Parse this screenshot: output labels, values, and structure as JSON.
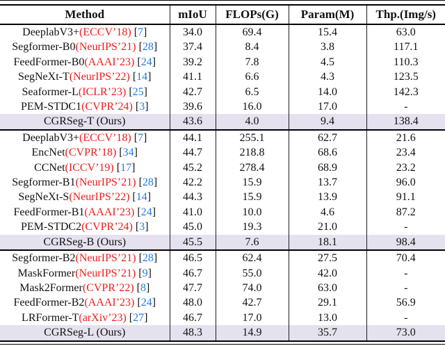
{
  "colors": {
    "venue_red": "#ee1c1c",
    "cite_blue": "#2779e0",
    "highlight_row_bg": "#e5e1ee",
    "rule_black": "#000000"
  },
  "table": {
    "columns": [
      "Method",
      "mIoU",
      "FLOPs(G)",
      "Param(M)",
      "Thp.(Img/s)"
    ],
    "column_keys": [
      "miou",
      "flops",
      "param",
      "thp"
    ],
    "groups": [
      {
        "rows": [
          {
            "name": "DeeplabV3+",
            "venue": "(ECCV’18)",
            "cite": "7",
            "values": [
              "34.0",
              "69.4",
              "15.4",
              "63.0"
            ],
            "highlight": false
          },
          {
            "name": "Segformer-B0",
            "venue": "(NeurIPS’21)",
            "cite": "28",
            "values": [
              "37.4",
              "8.4",
              "3.8",
              "117.1"
            ],
            "highlight": false
          },
          {
            "name": "FeedFormer-B0",
            "venue": "(AAAI’23)",
            "cite": "24",
            "values": [
              "39.2",
              "7.8",
              "4.5",
              "110.3"
            ],
            "highlight": false
          },
          {
            "name": "SegNeXt-T",
            "venue": "(NeurIPS’22)",
            "cite": "14",
            "values": [
              "41.1",
              "6.6",
              "4.3",
              "123.5"
            ],
            "highlight": false
          },
          {
            "name": "Seaformer-L",
            "venue": "(ICLR’23)",
            "cite": "25",
            "values": [
              "42.7",
              "6.5",
              "14.0",
              "142.3"
            ],
            "highlight": false
          },
          {
            "name": "PEM-STDC1",
            "venue": "(CVPR’24)",
            "cite": "3",
            "values": [
              "39.6",
              "16.0",
              "17.0",
              "-"
            ],
            "highlight": false
          },
          {
            "name": "CGRSeg-T (Ours)",
            "venue": null,
            "cite": null,
            "values": [
              "43.6",
              "4.0",
              "9.4",
              "138.4"
            ],
            "highlight": true
          }
        ]
      },
      {
        "rows": [
          {
            "name": "DeeplabV3+",
            "venue": "(ECCV’18)",
            "cite": "7",
            "values": [
              "44.1",
              "255.1",
              "62.7",
              "21.6"
            ],
            "highlight": false
          },
          {
            "name": "EncNet",
            "venue": "(CVPR’18)",
            "cite": "34",
            "values": [
              "44.7",
              "218.8",
              "68.6",
              "23.4"
            ],
            "highlight": false
          },
          {
            "name": "CCNet",
            "venue": "(ICCV’19)",
            "cite": "17",
            "values": [
              "45.2",
              "278.4",
              "68.9",
              "23.2"
            ],
            "highlight": false
          },
          {
            "name": "Segformer-B1",
            "venue": "(NeurIPS’21)",
            "cite": "28",
            "values": [
              "42.2",
              "15.9",
              "13.7",
              "96.0"
            ],
            "highlight": false
          },
          {
            "name": "SegNeXt-S",
            "venue": "(NeurIPS’22)",
            "cite": "14",
            "values": [
              "44.3",
              "15.9",
              "13.9",
              "91.1"
            ],
            "highlight": false
          },
          {
            "name": "FeedFormer-B1",
            "venue": "(AAAI’23)",
            "cite": "24",
            "values": [
              "41.0",
              "10.0",
              "4.6",
              "87.2"
            ],
            "highlight": false
          },
          {
            "name": "PEM-STDC2",
            "venue": "(CVPR’24)",
            "cite": "3",
            "values": [
              "45.0",
              "19.3",
              "21.0",
              "-"
            ],
            "highlight": false
          },
          {
            "name": "CGRSeg-B (Ours)",
            "venue": null,
            "cite": null,
            "values": [
              "45.5",
              "7.6",
              "18.1",
              "98.4"
            ],
            "highlight": true
          }
        ]
      },
      {
        "rows": [
          {
            "name": "Segformer-B2",
            "venue": "(NeurIPS’21)",
            "cite": "28",
            "values": [
              "46.5",
              "62.4",
              "27.5",
              "70.4"
            ],
            "highlight": false
          },
          {
            "name": "MaskFormer",
            "venue": "(NeurIPS’21)",
            "cite": "9",
            "values": [
              "46.7",
              "55.0",
              "42.0",
              "-"
            ],
            "highlight": false
          },
          {
            "name": "Mask2Former",
            "venue": "(CVPR’22)",
            "cite": "8",
            "values": [
              "47.7",
              "74.0",
              "63.0",
              "-"
            ],
            "highlight": false
          },
          {
            "name": "FeedFormer-B2",
            "venue": "(AAAI’23)",
            "cite": "24",
            "values": [
              "48.0",
              "42.7",
              "29.1",
              "56.9"
            ],
            "highlight": false
          },
          {
            "name": "LRFormer-T",
            "venue": "(arXiv’23)",
            "cite": "27",
            "values": [
              "46.7",
              "17.0",
              "13.0",
              "-"
            ],
            "highlight": false
          },
          {
            "name": "CGRSeg-L (Ours)",
            "venue": null,
            "cite": null,
            "values": [
              "48.3",
              "14.9",
              "35.7",
              "73.0"
            ],
            "highlight": true
          }
        ]
      }
    ]
  }
}
